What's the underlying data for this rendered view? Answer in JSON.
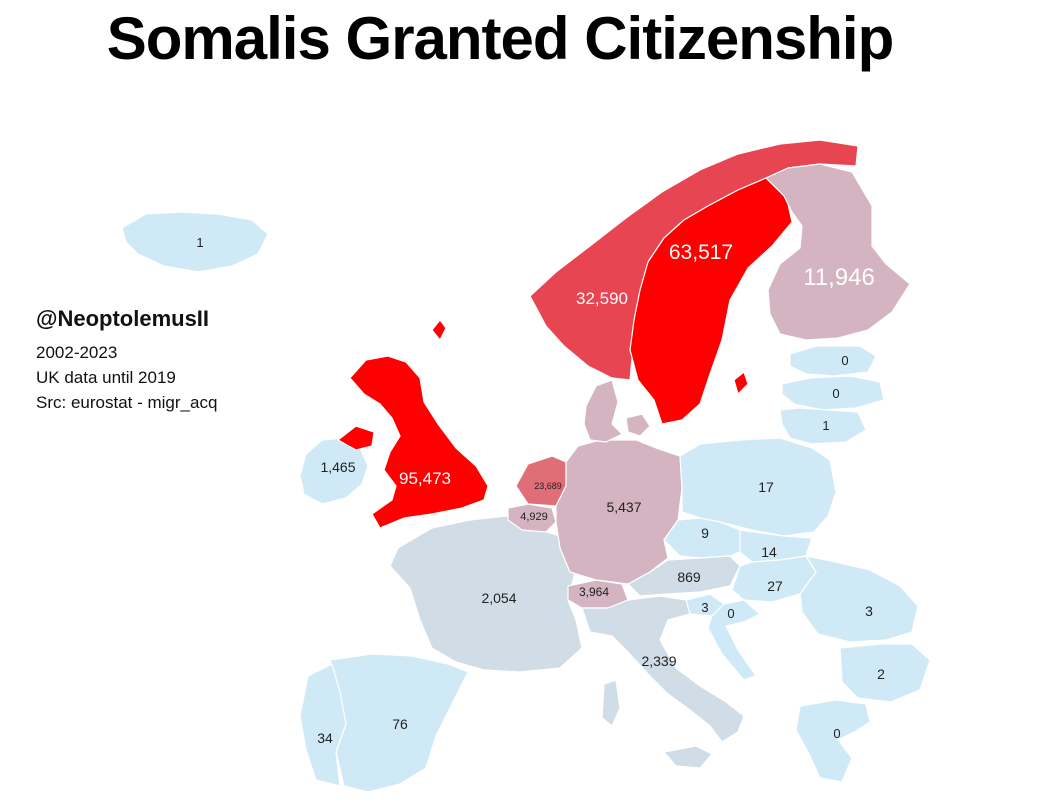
{
  "title": "Somalis Granted Citizenship",
  "credits": {
    "handle": "@NeoptolemusII",
    "lines": [
      "2002-2023",
      "UK data until 2019",
      "Src: eurostat - migr_acq"
    ]
  },
  "colors": {
    "very_high": "#ff0000",
    "high": "#e84552",
    "medium_high": "#e06e78",
    "medium": "#d3b4c0",
    "low": "#d0dde6",
    "very_low": "#cfeaf6"
  },
  "countries": [
    {
      "id": "iceland",
      "value": "1"
    },
    {
      "id": "ireland",
      "value": "1,465"
    },
    {
      "id": "united-kingdom",
      "value": "95,473"
    },
    {
      "id": "norway",
      "value": "32,590"
    },
    {
      "id": "sweden",
      "value": "63,517"
    },
    {
      "id": "finland",
      "value": "11,946"
    },
    {
      "id": "estonia",
      "value": "0"
    },
    {
      "id": "latvia",
      "value": "0"
    },
    {
      "id": "lithuania",
      "value": "1"
    },
    {
      "id": "netherlands",
      "value": "23,689"
    },
    {
      "id": "belgium",
      "value": "4,929"
    },
    {
      "id": "germany",
      "value": "5,437"
    },
    {
      "id": "poland",
      "value": "17"
    },
    {
      "id": "czechia",
      "value": "9"
    },
    {
      "id": "slovakia",
      "value": "14"
    },
    {
      "id": "austria",
      "value": "869"
    },
    {
      "id": "hungary",
      "value": "27"
    },
    {
      "id": "slovenia",
      "value": "3"
    },
    {
      "id": "croatia",
      "value": "0"
    },
    {
      "id": "romania",
      "value": "3"
    },
    {
      "id": "bulgaria",
      "value": "2"
    },
    {
      "id": "greece",
      "value": "0"
    },
    {
      "id": "france",
      "value": "2,054"
    },
    {
      "id": "switzerland",
      "value": "3,964"
    },
    {
      "id": "italy",
      "value": "2,339"
    },
    {
      "id": "spain",
      "value": "76"
    },
    {
      "id": "portugal",
      "value": "34"
    }
  ]
}
